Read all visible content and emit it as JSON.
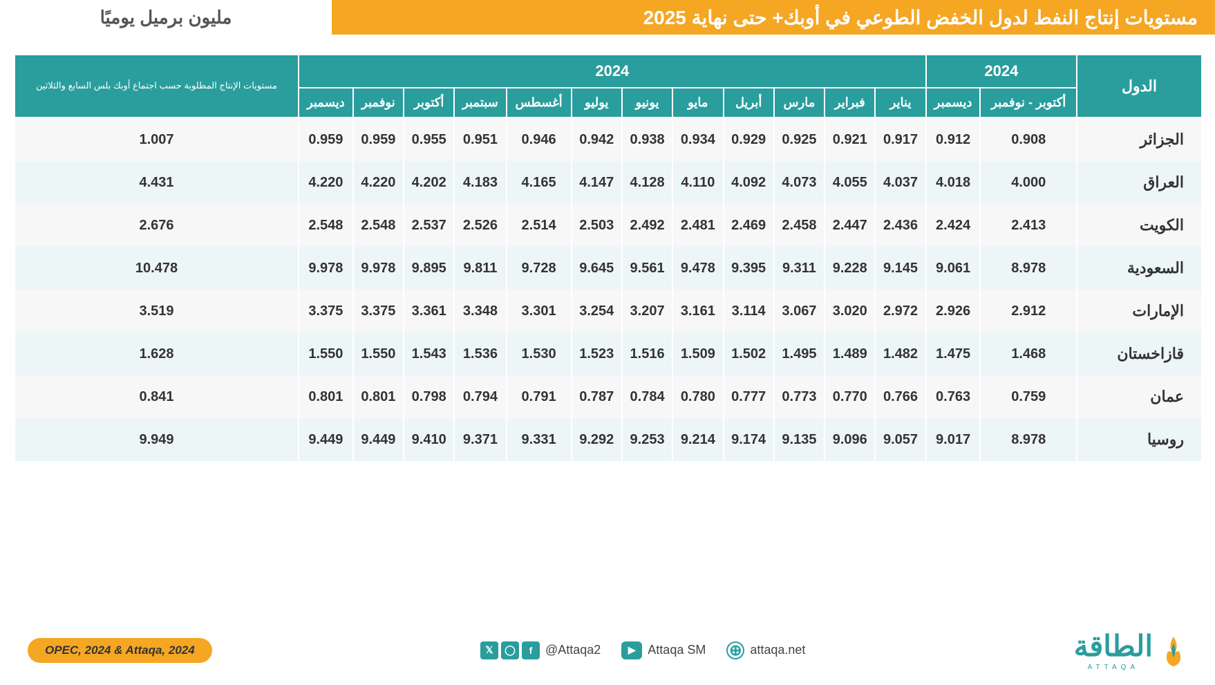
{
  "header": {
    "title": "مستويات إنتاج النفط لدول الخفض الطوعي في أوبك+ حتى نهاية 2025",
    "unit": "مليون برميل يوميًا"
  },
  "colors": {
    "title_bg": "#f5a623",
    "th_bg": "#2a9d9d",
    "odd_row": "#f7f7f7",
    "even_row": "#edf6f6",
    "text": "#333333"
  },
  "table": {
    "year_group_1": "2024",
    "year_group_2": "2024",
    "col_country": "الدول",
    "col_oct_nov": "أكتوبر - نوفمبر",
    "col_dec_prev": "ديسمبر",
    "col_jan": "يناير",
    "col_feb": "فبراير",
    "col_mar": "مارس",
    "col_apr": "أبريل",
    "col_may": "مايو",
    "col_jun": "يونيو",
    "col_jul": "يوليو",
    "col_aug": "أغسطس",
    "col_sep": "سبتمبر",
    "col_oct": "أكتوبر",
    "col_nov": "نوفمبر",
    "col_dec": "ديسمبر",
    "col_required": "مستويات الإنتاج المطلوبة حسب اجتماع أوبك بلس السابع والثلاثين",
    "rows": [
      {
        "country": "الجزائر",
        "oct_nov": "0.908",
        "dec_prev": "0.912",
        "jan": "0.917",
        "feb": "0.921",
        "mar": "0.925",
        "apr": "0.929",
        "may": "0.934",
        "jun": "0.938",
        "jul": "0.942",
        "aug": "0.946",
        "sep": "0.951",
        "oct": "0.955",
        "nov": "0.959",
        "dec": "0.959",
        "req": "1.007"
      },
      {
        "country": "العراق",
        "oct_nov": "4.000",
        "dec_prev": "4.018",
        "jan": "4.037",
        "feb": "4.055",
        "mar": "4.073",
        "apr": "4.092",
        "may": "4.110",
        "jun": "4.128",
        "jul": "4.147",
        "aug": "4.165",
        "sep": "4.183",
        "oct": "4.202",
        "nov": "4.220",
        "dec": "4.220",
        "req": "4.431"
      },
      {
        "country": "الكويت",
        "oct_nov": "2.413",
        "dec_prev": "2.424",
        "jan": "2.436",
        "feb": "2.447",
        "mar": "2.458",
        "apr": "2.469",
        "may": "2.481",
        "jun": "2.492",
        "jul": "2.503",
        "aug": "2.514",
        "sep": "2.526",
        "oct": "2.537",
        "nov": "2.548",
        "dec": "2.548",
        "req": "2.676"
      },
      {
        "country": "السعودية",
        "oct_nov": "8.978",
        "dec_prev": "9.061",
        "jan": "9.145",
        "feb": "9.228",
        "mar": "9.311",
        "apr": "9.395",
        "may": "9.478",
        "jun": "9.561",
        "jul": "9.645",
        "aug": "9.728",
        "sep": "9.811",
        "oct": "9.895",
        "nov": "9.978",
        "dec": "9.978",
        "req": "10.478"
      },
      {
        "country": "الإمارات",
        "oct_nov": "2.912",
        "dec_prev": "2.926",
        "jan": "2.972",
        "feb": "3.020",
        "mar": "3.067",
        "apr": "3.114",
        "may": "3.161",
        "jun": "3.207",
        "jul": "3.254",
        "aug": "3.301",
        "sep": "3.348",
        "oct": "3.361",
        "nov": "3.375",
        "dec": "3.375",
        "req": "3.519"
      },
      {
        "country": "قازاخستان",
        "oct_nov": "1.468",
        "dec_prev": "1.475",
        "jan": "1.482",
        "feb": "1.489",
        "mar": "1.495",
        "apr": "1.502",
        "may": "1.509",
        "jun": "1.516",
        "jul": "1.523",
        "aug": "1.530",
        "sep": "1.536",
        "oct": "1.543",
        "nov": "1.550",
        "dec": "1.550",
        "req": "1.628"
      },
      {
        "country": "عمان",
        "oct_nov": "0.759",
        "dec_prev": "0.763",
        "jan": "0.766",
        "feb": "0.770",
        "mar": "0.773",
        "apr": "0.777",
        "may": "0.780",
        "jun": "0.784",
        "jul": "0.787",
        "aug": "0.791",
        "sep": "0.794",
        "oct": "0.798",
        "nov": "0.801",
        "dec": "0.801",
        "req": "0.841"
      },
      {
        "country": "روسيا",
        "oct_nov": "8.978",
        "dec_prev": "9.017",
        "jan": "9.057",
        "feb": "9.096",
        "mar": "9.135",
        "apr": "9.174",
        "may": "9.214",
        "jun": "9.253",
        "jul": "9.292",
        "aug": "9.331",
        "sep": "9.371",
        "oct": "9.410",
        "nov": "9.449",
        "dec": "9.449",
        "req": "9.949"
      }
    ]
  },
  "footer": {
    "logo": "الطاقة",
    "logo_sub": "ATTAQA",
    "handle": "@Attaqa2",
    "youtube": "Attaqa SM",
    "website": "attaqa.net",
    "source": "OPEC, 2024 & Attaqa, 2024"
  }
}
